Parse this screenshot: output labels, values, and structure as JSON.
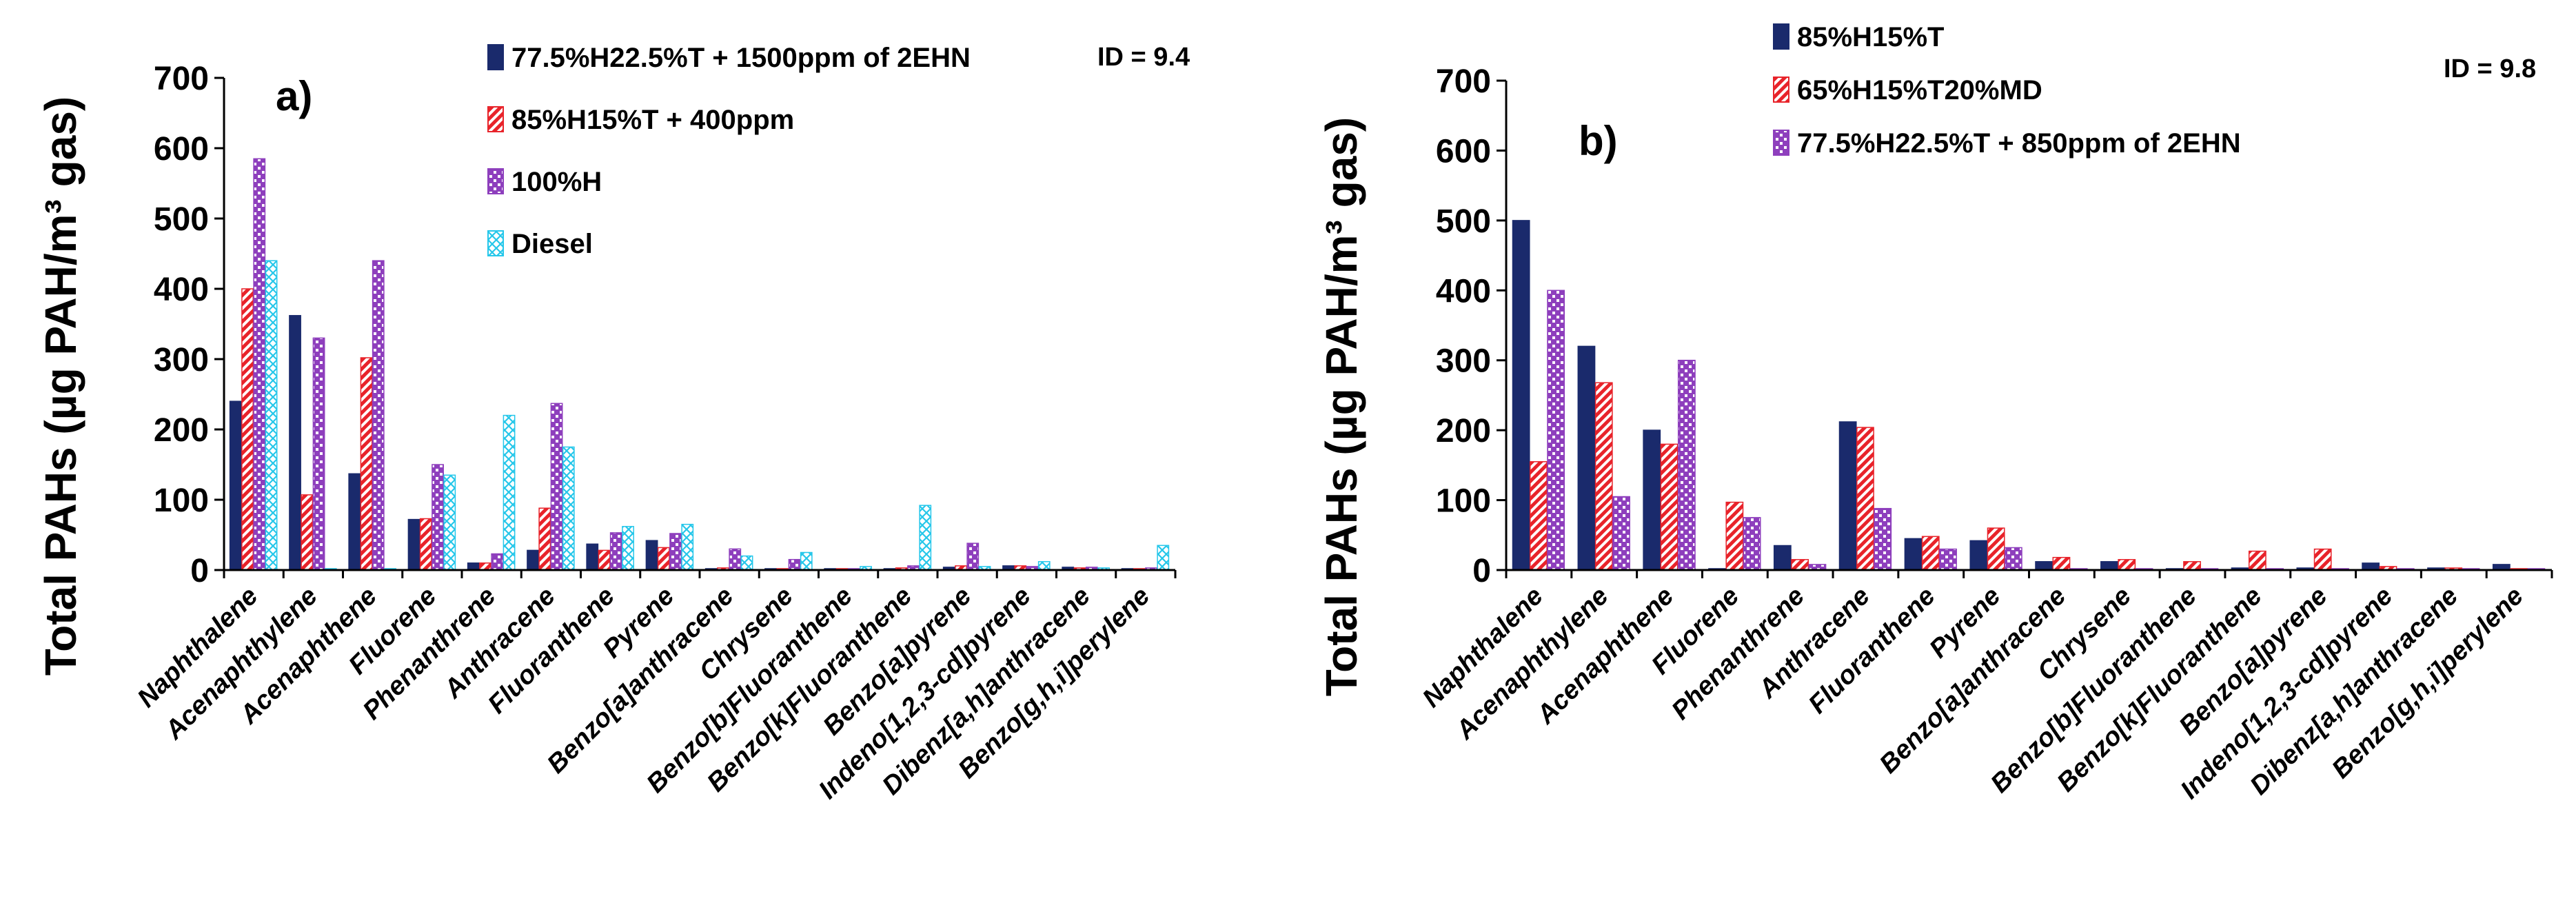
{
  "chart_data": [
    {
      "type": "bar",
      "panel_label": "a)",
      "id_label": "ID = 9.4",
      "ylabel": "Total  PAHs (µg PAH/m³ gas)",
      "xlabel": "",
      "ylim": [
        0,
        700
      ],
      "yticks": [
        "0",
        "100",
        "200",
        "300",
        "400",
        "500",
        "600",
        "700"
      ],
      "ytick_values": [
        0,
        100,
        200,
        300,
        400,
        500,
        600,
        700
      ],
      "grid": false,
      "legend_position": "top-center",
      "categories": [
        "Naphthalene",
        "Acenaphthylene",
        "Acenaphthene",
        "Fluorene",
        "Phenanthrene",
        "Anthracene",
        "Fluoranthene",
        "Pyrene",
        "Benzo[a]anthracene",
        "Chrysene",
        "Benzo[b]Fluoranthene",
        "Benzo[k]Fluoranthene",
        "Benzo[a]pyrene",
        "Indeno[1,2,3-cd]pyrene",
        "Dibenz[a,h]anthracene",
        "Benzo[g,h,i]perylene"
      ],
      "series": [
        {
          "name": "77.5%H22.5%T + 1500ppm of 2EHN",
          "color": "#1a2a6c",
          "pattern": "solid",
          "values": [
            240,
            362,
            137,
            72,
            10,
            28,
            37,
            42,
            2,
            2,
            2,
            2,
            4,
            6,
            4,
            2
          ]
        },
        {
          "name": "85%H15%T + 400ppm",
          "color": "#e8232a",
          "pattern": "hatch",
          "values": [
            400,
            107,
            302,
            73,
            10,
            88,
            28,
            32,
            3,
            2,
            2,
            3,
            6,
            6,
            3,
            2
          ]
        },
        {
          "name": "100%H",
          "color": "#8e3fbd",
          "pattern": "dots",
          "values": [
            585,
            330,
            440,
            150,
            23,
            237,
            53,
            52,
            30,
            15,
            2,
            6,
            38,
            5,
            4,
            3
          ]
        },
        {
          "name": "Diesel",
          "color": "#25c7ea",
          "pattern": "cross",
          "values": [
            440,
            2,
            2,
            135,
            220,
            175,
            62,
            65,
            20,
            25,
            5,
            92,
            5,
            12,
            3,
            35
          ]
        }
      ]
    },
    {
      "type": "bar",
      "panel_label": "b)",
      "id_label": "ID = 9.8",
      "ylabel": "Total PAHs (µg PAH/m³ gas)",
      "xlabel": "",
      "ylim": [
        0,
        700
      ],
      "yticks": [
        "0",
        "100",
        "200",
        "300",
        "400",
        "500",
        "600",
        "700"
      ],
      "ytick_values": [
        0,
        100,
        200,
        300,
        400,
        500,
        600,
        700
      ],
      "grid": false,
      "legend_position": "top-center",
      "categories": [
        "Naphthalene",
        "Acenaphthylene",
        "Acenaphthene",
        "Fluorene",
        "Phenanthrene",
        "Anthracene",
        "Fluoranthene",
        "Pyrene",
        "Benzo[a]anthracene",
        "Chrysene",
        "Benzo[b]Fluoranthene",
        "Benzo[k]Fluoranthene",
        "Benzo[a]pyrene",
        "Indeno[1,2,3-cd]pyrene",
        "Dibenz[a,h]anthracene",
        "Benzo[g,h,i]perylene"
      ],
      "series": [
        {
          "name": "85%H15%T",
          "color": "#1a2a6c",
          "pattern": "solid",
          "values": [
            500,
            320,
            200,
            2,
            35,
            212,
            45,
            42,
            12,
            12,
            2,
            3,
            3,
            10,
            3,
            8
          ]
        },
        {
          "name": "65%H15%T20%MD",
          "color": "#e8232a",
          "pattern": "hatch",
          "values": [
            155,
            268,
            180,
            97,
            15,
            204,
            48,
            60,
            18,
            15,
            12,
            27,
            30,
            5,
            3,
            2
          ]
        },
        {
          "name": "77.5%H22.5%T + 850ppm of 2EHN",
          "color": "#8e3fbd",
          "pattern": "dots",
          "values": [
            400,
            105,
            300,
            75,
            8,
            88,
            30,
            32,
            2,
            2,
            2,
            2,
            2,
            2,
            2,
            2
          ]
        }
      ]
    }
  ]
}
